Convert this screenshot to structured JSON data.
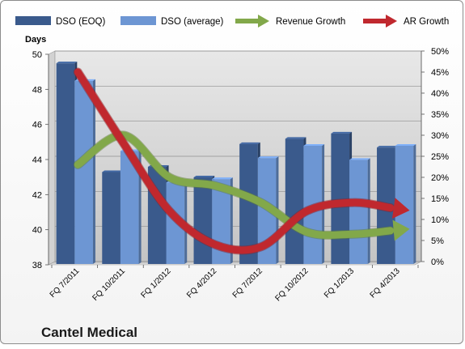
{
  "chart_data": {
    "type": "bar",
    "title": "Cantel Medical",
    "ylabel": "Days",
    "categories": [
      "FQ 7/2011",
      "FQ 10/2011",
      "FQ 1/2012",
      "FQ 4/2012",
      "FQ 7/2012",
      "FQ 10/2012",
      "FQ 1/2013",
      "FQ 4/2013"
    ],
    "ylim": [
      38,
      50
    ],
    "y_ticks": [
      "38",
      "40",
      "42",
      "44",
      "46",
      "48",
      "50"
    ],
    "y2lim": [
      0,
      50
    ],
    "y2_ticks": [
      "0%",
      "5%",
      "10%",
      "15%",
      "20%",
      "25%",
      "30%",
      "35%",
      "40%",
      "45%",
      "50%"
    ],
    "series": [
      {
        "name": "DSO (EOQ)",
        "axis": "left",
        "kind": "bar",
        "color": "#3a5a8c",
        "values": [
          49.3,
          43.1,
          43.4,
          42.8,
          44.7,
          45.0,
          45.3,
          44.5
        ]
      },
      {
        "name": "DSO (average)",
        "axis": "left",
        "kind": "bar",
        "color": "#6d96d3",
        "values": [
          48.3,
          44.3,
          42.5,
          42.7,
          43.9,
          44.6,
          43.8,
          44.6
        ]
      },
      {
        "name": "Revenue Growth",
        "axis": "right",
        "kind": "arrow-line",
        "color": "#82a84a",
        "values": [
          23.0,
          30.0,
          20.0,
          18.0,
          14.0,
          7.0,
          6.5,
          7.5
        ]
      },
      {
        "name": "AR Growth",
        "axis": "right",
        "kind": "arrow-line",
        "color": "#c0282e",
        "values": [
          45.0,
          28.0,
          12.0,
          4.0,
          3.5,
          12.0,
          14.0,
          12.5
        ]
      }
    ],
    "grid": true,
    "legend": "top"
  }
}
